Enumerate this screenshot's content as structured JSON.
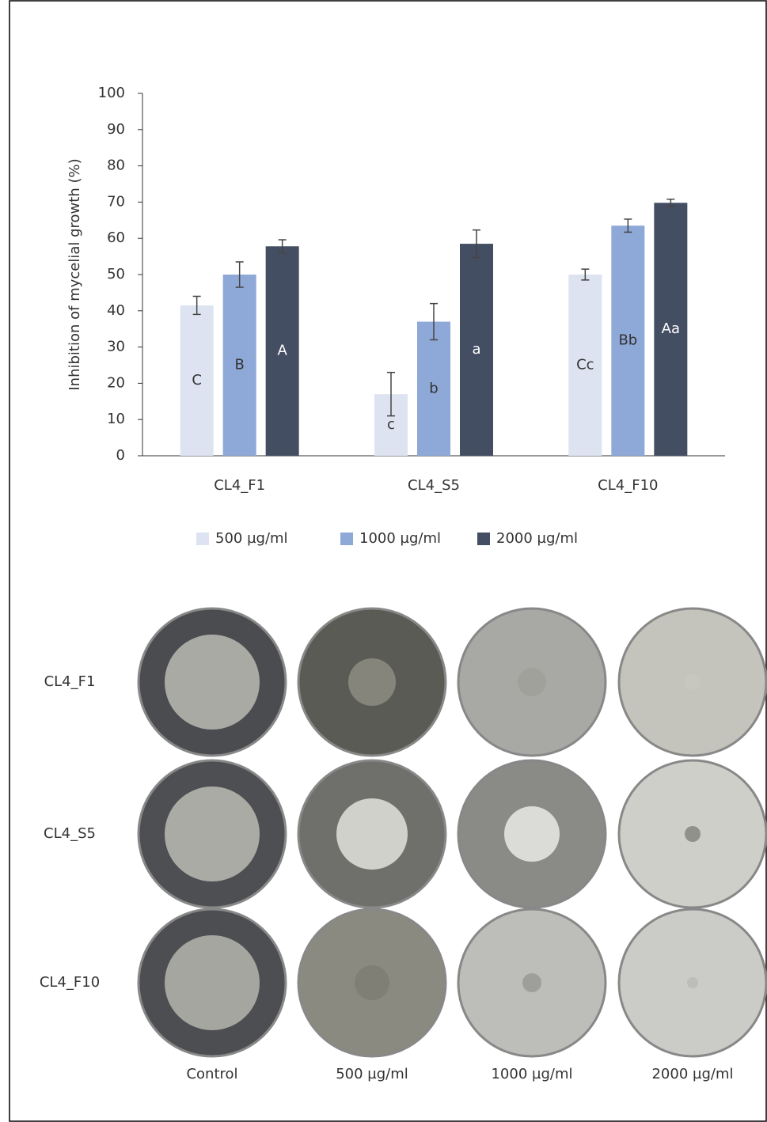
{
  "chart_data": {
    "type": "bar",
    "y_label": "Inhibition of mycelial growth (%)",
    "categories": [
      "CL4_F1",
      "CL4_S5",
      "CL4_F10"
    ],
    "series": [
      {
        "name": "500 µg/ml",
        "color": "#dde3f0",
        "values": [
          41.5,
          17,
          50
        ],
        "errors": [
          2.5,
          6,
          1.5
        ],
        "letters": [
          "C",
          "c",
          "Cc"
        ]
      },
      {
        "name": "1000 µg/ml",
        "color": "#8ea8d8",
        "values": [
          50,
          37,
          63.5
        ],
        "errors": [
          3.5,
          5,
          1.8
        ],
        "letters": [
          "B",
          "b",
          "Bb"
        ]
      },
      {
        "name": "2000 µg/ml",
        "color": "#444e62",
        "values": [
          57.8,
          58.5,
          69.8
        ],
        "errors": [
          1.8,
          3.8,
          1
        ],
        "letters": [
          "A",
          "a",
          "Aa"
        ]
      }
    ],
    "ylim": [
      0,
      100
    ],
    "yticks": [
      0,
      10,
      20,
      30,
      40,
      50,
      60,
      70,
      80,
      90,
      100
    ],
    "legend": "bottom"
  },
  "plates": {
    "rows": [
      "CL4_F1",
      "CL4_S5",
      "CL4_F10"
    ],
    "columns": [
      "Control",
      "500 µg/ml",
      "1000 µg/ml",
      "2000 µg/ml"
    ]
  }
}
